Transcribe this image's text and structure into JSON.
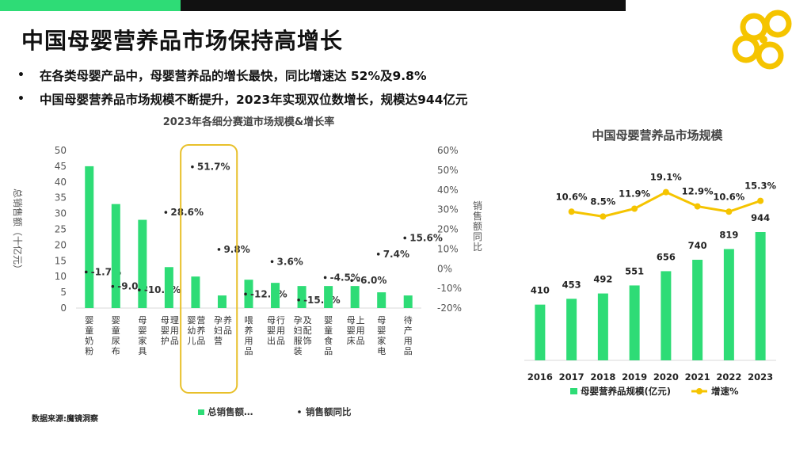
{
  "page": {
    "title": "中国母婴营养品市场保持高增长",
    "bullets": [
      "在各类母婴产品中，母婴营养品的增长最快，同比增速达 52%及9.8%",
      "中国母婴营养品市场规模不断提升，2023年实现双位数增长，规模达944亿元"
    ],
    "bullet_mark": "•",
    "source": "数据来源:魔镜洞察"
  },
  "colors": {
    "green": "#2edc76",
    "yellow": "#f5c400",
    "black": "#111111",
    "highlight_border": "#e8c02a"
  },
  "logo": {
    "icon": "flower-logo-icon"
  },
  "chart_data": [
    {
      "type": "bar",
      "title": "2023年各细分赛道市场规模&增长率",
      "ylabel": "总销售额（十亿元）",
      "y2label": "销售额同比",
      "categories": [
        "婴童奶粉",
        "婴童尿布",
        "母婴家具",
        "母婴护理用品",
        "婴幼儿营养品",
        "孕妇营养品",
        "喂养用品",
        "母婴出行用品",
        "孕妇服装及配饰",
        "婴童食品",
        "母婴床上用品",
        "母婴家电",
        "待产用品"
      ],
      "ylim": [
        0,
        50
      ],
      "yticks": [
        0,
        5,
        10,
        15,
        20,
        25,
        30,
        35,
        40,
        45,
        50
      ],
      "y2lim": [
        -20,
        60
      ],
      "y2ticks": [
        "-20%",
        "-10%",
        "0%",
        "10%",
        "20%",
        "30%",
        "40%",
        "50%",
        "60%"
      ],
      "series": [
        {
          "name": "总销售额…",
          "type": "bar",
          "values": [
            45,
            33,
            28,
            13,
            10,
            4,
            9,
            8,
            7,
            7,
            7,
            5,
            4
          ]
        },
        {
          "name": "销售额同比",
          "type": "scatter",
          "values": [
            -1.7,
            -9.0,
            -10.8,
            28.6,
            51.7,
            9.8,
            -12.9,
            3.6,
            -15.9,
            -4.5,
            -6.0,
            7.4,
            15.6
          ],
          "labels": [
            "-1.7%",
            "-9.0%",
            "-10.8%",
            "28.6%",
            "51.7%",
            "9.8%",
            "-12.9%",
            "3.6%",
            "-15.9%",
            "-4.5%",
            "-6.0%",
            "7.4%",
            "15.6%"
          ]
        }
      ],
      "highlight": [
        "婴幼儿营养品",
        "孕妇营养品"
      ],
      "legend": "bottom"
    },
    {
      "type": "bar",
      "title": "中国母婴营养品市场规模",
      "categories": [
        "2016",
        "2017",
        "2018",
        "2019",
        "2020",
        "2021",
        "2022",
        "2023"
      ],
      "series": [
        {
          "name": "母婴营养品规模(亿元)",
          "type": "bar",
          "values": [
            410,
            453,
            492,
            551,
            656,
            740,
            819,
            944
          ],
          "labels": [
            "410",
            "453",
            "492",
            "551",
            "656",
            "740",
            "819",
            "944"
          ]
        },
        {
          "name": "增速%",
          "type": "line",
          "values": [
            10.6,
            8.5,
            11.9,
            19.1,
            12.9,
            10.6,
            15.3
          ],
          "x": [
            "2017",
            "2018",
            "2019",
            "2020",
            "2021",
            "2022",
            "2023"
          ],
          "labels": [
            "10.6%",
            "8.5%",
            "11.9%",
            "19.1%",
            "12.9%",
            "10.6%",
            "15.3%"
          ]
        }
      ],
      "legend": "bottom"
    }
  ]
}
